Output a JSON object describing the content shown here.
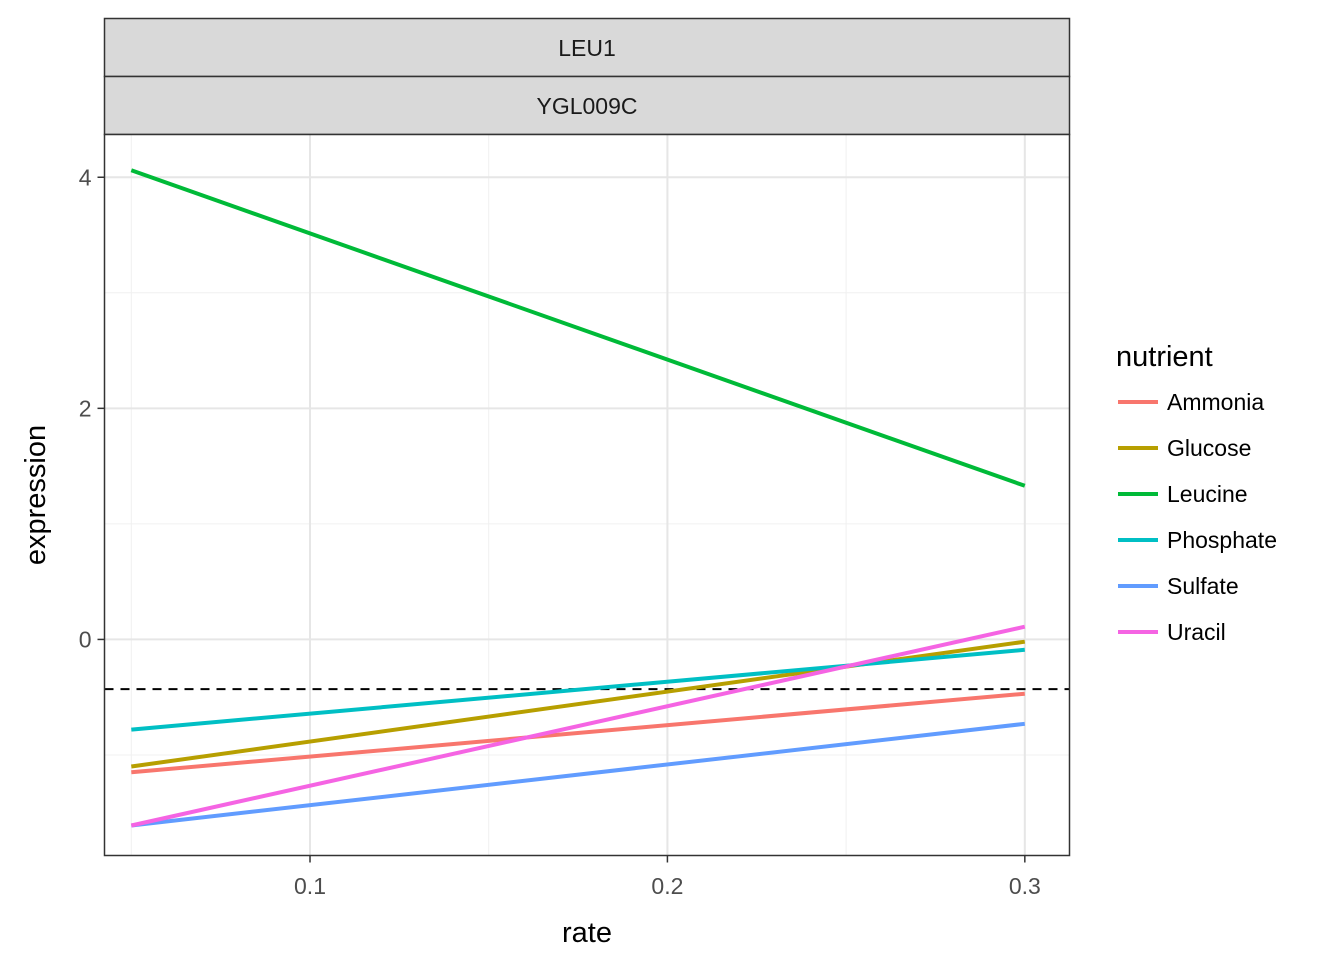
{
  "chart_data": {
    "type": "line",
    "facet_strips": [
      "LEU1",
      "YGL009C"
    ],
    "xlabel": "rate",
    "ylabel": "expression",
    "xlim": [
      0.0425,
      0.3125
    ],
    "ylim": [
      -1.87,
      4.37
    ],
    "x_ticks": [
      0.1,
      0.2,
      0.3
    ],
    "x_tick_labels": [
      "0.1",
      "0.2",
      "0.3"
    ],
    "y_ticks": [
      0,
      2,
      4
    ],
    "y_tick_labels": [
      "0",
      "2",
      "4"
    ],
    "x_minor_ticks": [
      0.05,
      0.15,
      0.25
    ],
    "y_minor_ticks": [
      -1,
      1,
      3
    ],
    "grid": true,
    "reference_line": {
      "y": -0.43,
      "style": "dashed"
    },
    "legend": {
      "title": "nutrient",
      "position": "right"
    },
    "series": [
      {
        "name": "Ammonia",
        "color": "#F8766D",
        "x": [
          0.05,
          0.3
        ],
        "y": [
          -1.15,
          -0.47
        ]
      },
      {
        "name": "Glucose",
        "color": "#B79F00",
        "x": [
          0.05,
          0.3
        ],
        "y": [
          -1.1,
          -0.02
        ]
      },
      {
        "name": "Leucine",
        "color": "#00BA38",
        "x": [
          0.05,
          0.3
        ],
        "y": [
          4.06,
          1.33
        ]
      },
      {
        "name": "Phosphate",
        "color": "#00BFC4",
        "x": [
          0.05,
          0.3
        ],
        "y": [
          -0.78,
          -0.09
        ]
      },
      {
        "name": "Sulfate",
        "color": "#619CFF",
        "x": [
          0.05,
          0.3
        ],
        "y": [
          -1.61,
          -0.73
        ]
      },
      {
        "name": "Uracil",
        "color": "#F564E3",
        "x": [
          0.05,
          0.3
        ],
        "y": [
          -1.61,
          0.11
        ]
      }
    ]
  }
}
